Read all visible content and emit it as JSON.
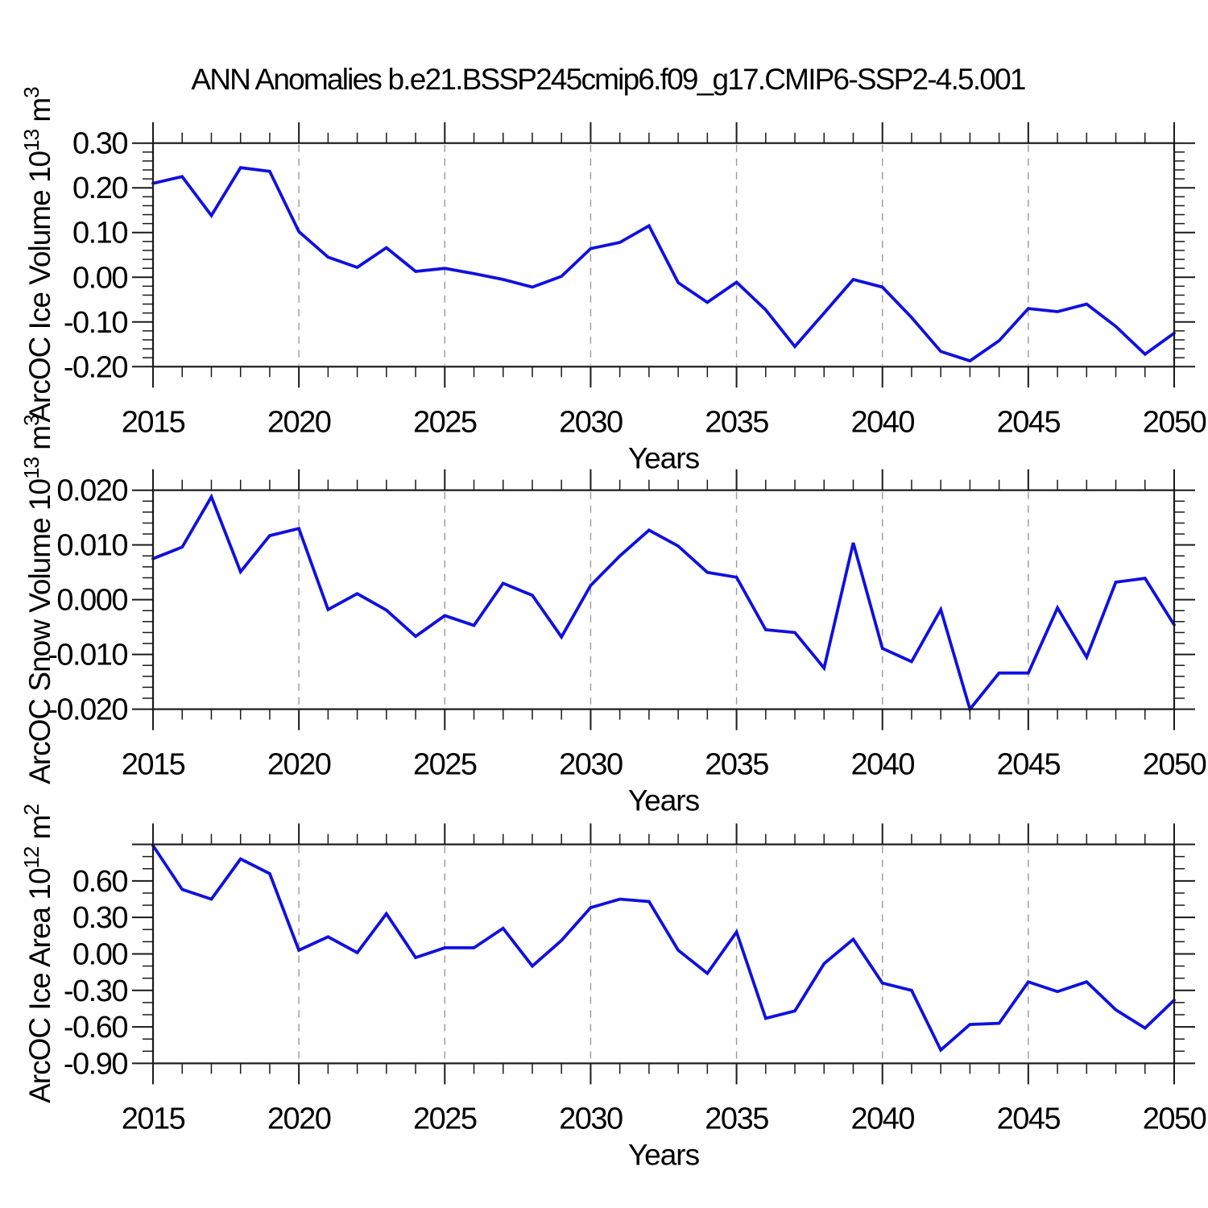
{
  "title": "ANN Anomalies b.e21.BSSP245cmip6.f09_g17.CMIP6-SSP2-4.5.001",
  "colors": {
    "line": "#0f10e0",
    "grid": "#999999",
    "axis": "#1a1a1a",
    "background": "#ffffff",
    "text": "#000000"
  },
  "x_axis": {
    "label": "Years",
    "range": [
      2015,
      2050
    ],
    "years": [
      2015,
      2016,
      2017,
      2018,
      2019,
      2020,
      2021,
      2022,
      2023,
      2024,
      2025,
      2026,
      2027,
      2028,
      2029,
      2030,
      2031,
      2032,
      2033,
      2034,
      2035,
      2036,
      2037,
      2038,
      2039,
      2040,
      2041,
      2042,
      2043,
      2044,
      2045,
      2046,
      2047,
      2048,
      2049,
      2050
    ],
    "major_ticks": [
      2015,
      2020,
      2025,
      2030,
      2035,
      2040,
      2045,
      2050
    ],
    "tick_labels": [
      "2015",
      "2020",
      "2025",
      "2030",
      "2035",
      "2040",
      "2045",
      "2050"
    ],
    "minor_step": 1,
    "gridlines": [
      2020,
      2025,
      2030,
      2035,
      2040,
      2045
    ]
  },
  "chart_data": [
    {
      "type": "line",
      "ylabel_plain": "ArcOC Ice Volume 10^13 m^3",
      "ylabel_runs": [
        {
          "t": "ArcOC Ice Volume 10"
        },
        {
          "t": "13",
          "sup": true
        },
        {
          "t": " m"
        },
        {
          "t": "3",
          "sup": true
        }
      ],
      "ylim": [
        -0.2,
        0.3
      ],
      "y_major_step": 0.1,
      "y_minor_step": 0.02,
      "yticks": [
        0.3,
        0.2,
        0.1,
        0.0,
        -0.1,
        -0.2
      ],
      "ytick_labels": [
        "0.30",
        "0.20",
        "0.10",
        "0.00",
        "-0.10",
        "-0.20"
      ],
      "grid": "vertical-dashed",
      "legend": "none",
      "values": [
        0.21,
        0.225,
        0.138,
        0.245,
        0.237,
        0.102,
        0.045,
        0.022,
        0.066,
        0.013,
        0.02,
        0.008,
        -0.005,
        -0.022,
        0.002,
        0.064,
        0.078,
        0.115,
        -0.012,
        -0.056,
        -0.011,
        -0.073,
        -0.155,
        -0.08,
        -0.005,
        -0.022,
        -0.09,
        -0.166,
        -0.187,
        -0.142,
        -0.07,
        -0.077,
        -0.06,
        -0.11,
        -0.172,
        -0.125
      ]
    },
    {
      "type": "line",
      "ylabel_plain": "ArcOC Snow Volume 10^13 m^3",
      "ylabel_runs": [
        {
          "t": "ArcOC Snow Volume 10"
        },
        {
          "t": "13",
          "sup": true
        },
        {
          "t": " m"
        },
        {
          "t": "3",
          "sup": true
        }
      ],
      "ylim": [
        -0.02,
        0.02
      ],
      "y_major_step": 0.01,
      "y_minor_step": 0.002,
      "yticks": [
        0.02,
        0.01,
        0.0,
        -0.01,
        -0.02
      ],
      "ytick_labels": [
        "0.020",
        "0.010",
        "0.000",
        "-0.010",
        "-0.020"
      ],
      "grid": "vertical-dashed",
      "legend": "none",
      "values": [
        0.0075,
        0.0096,
        0.0188,
        0.0051,
        0.0117,
        0.013,
        -0.0018,
        0.0011,
        -0.0019,
        -0.0067,
        -0.0029,
        -0.0047,
        0.003,
        0.0008,
        -0.0068,
        0.0026,
        0.008,
        0.0127,
        0.0098,
        0.005,
        0.0041,
        -0.0055,
        -0.006,
        -0.0125,
        0.0104,
        -0.0089,
        -0.0113,
        -0.0018,
        -0.02,
        -0.0134,
        -0.0134,
        -0.0015,
        -0.0105,
        0.0032,
        0.0039,
        -0.0046
      ]
    },
    {
      "type": "line",
      "ylabel_plain": "ArcOC Ice Area 10^12 m^2",
      "ylabel_runs": [
        {
          "t": "ArcOC Ice Area 10"
        },
        {
          "t": "12",
          "sup": true
        },
        {
          "t": " m"
        },
        {
          "t": "2",
          "sup": true
        }
      ],
      "ylim": [
        -0.9,
        0.9
      ],
      "y_major_step": 0.3,
      "y_minor_step": 0.1,
      "yticks": [
        0.9,
        0.6,
        0.3,
        0.0,
        -0.3,
        -0.6,
        -0.9
      ],
      "ytick_labels": [
        "",
        "0.60",
        "0.30",
        "0.00",
        "-0.30",
        "-0.60",
        "-0.90"
      ],
      "grid": "vertical-dashed",
      "legend": "none",
      "values": [
        0.89,
        0.53,
        0.45,
        0.78,
        0.66,
        0.03,
        0.14,
        0.01,
        0.33,
        -0.03,
        0.05,
        0.05,
        0.21,
        -0.1,
        0.11,
        0.38,
        0.45,
        0.43,
        0.03,
        -0.16,
        0.18,
        -0.53,
        -0.47,
        -0.08,
        0.12,
        -0.24,
        -0.3,
        -0.79,
        -0.58,
        -0.57,
        -0.23,
        -0.31,
        -0.23,
        -0.46,
        -0.61,
        -0.38
      ]
    }
  ]
}
